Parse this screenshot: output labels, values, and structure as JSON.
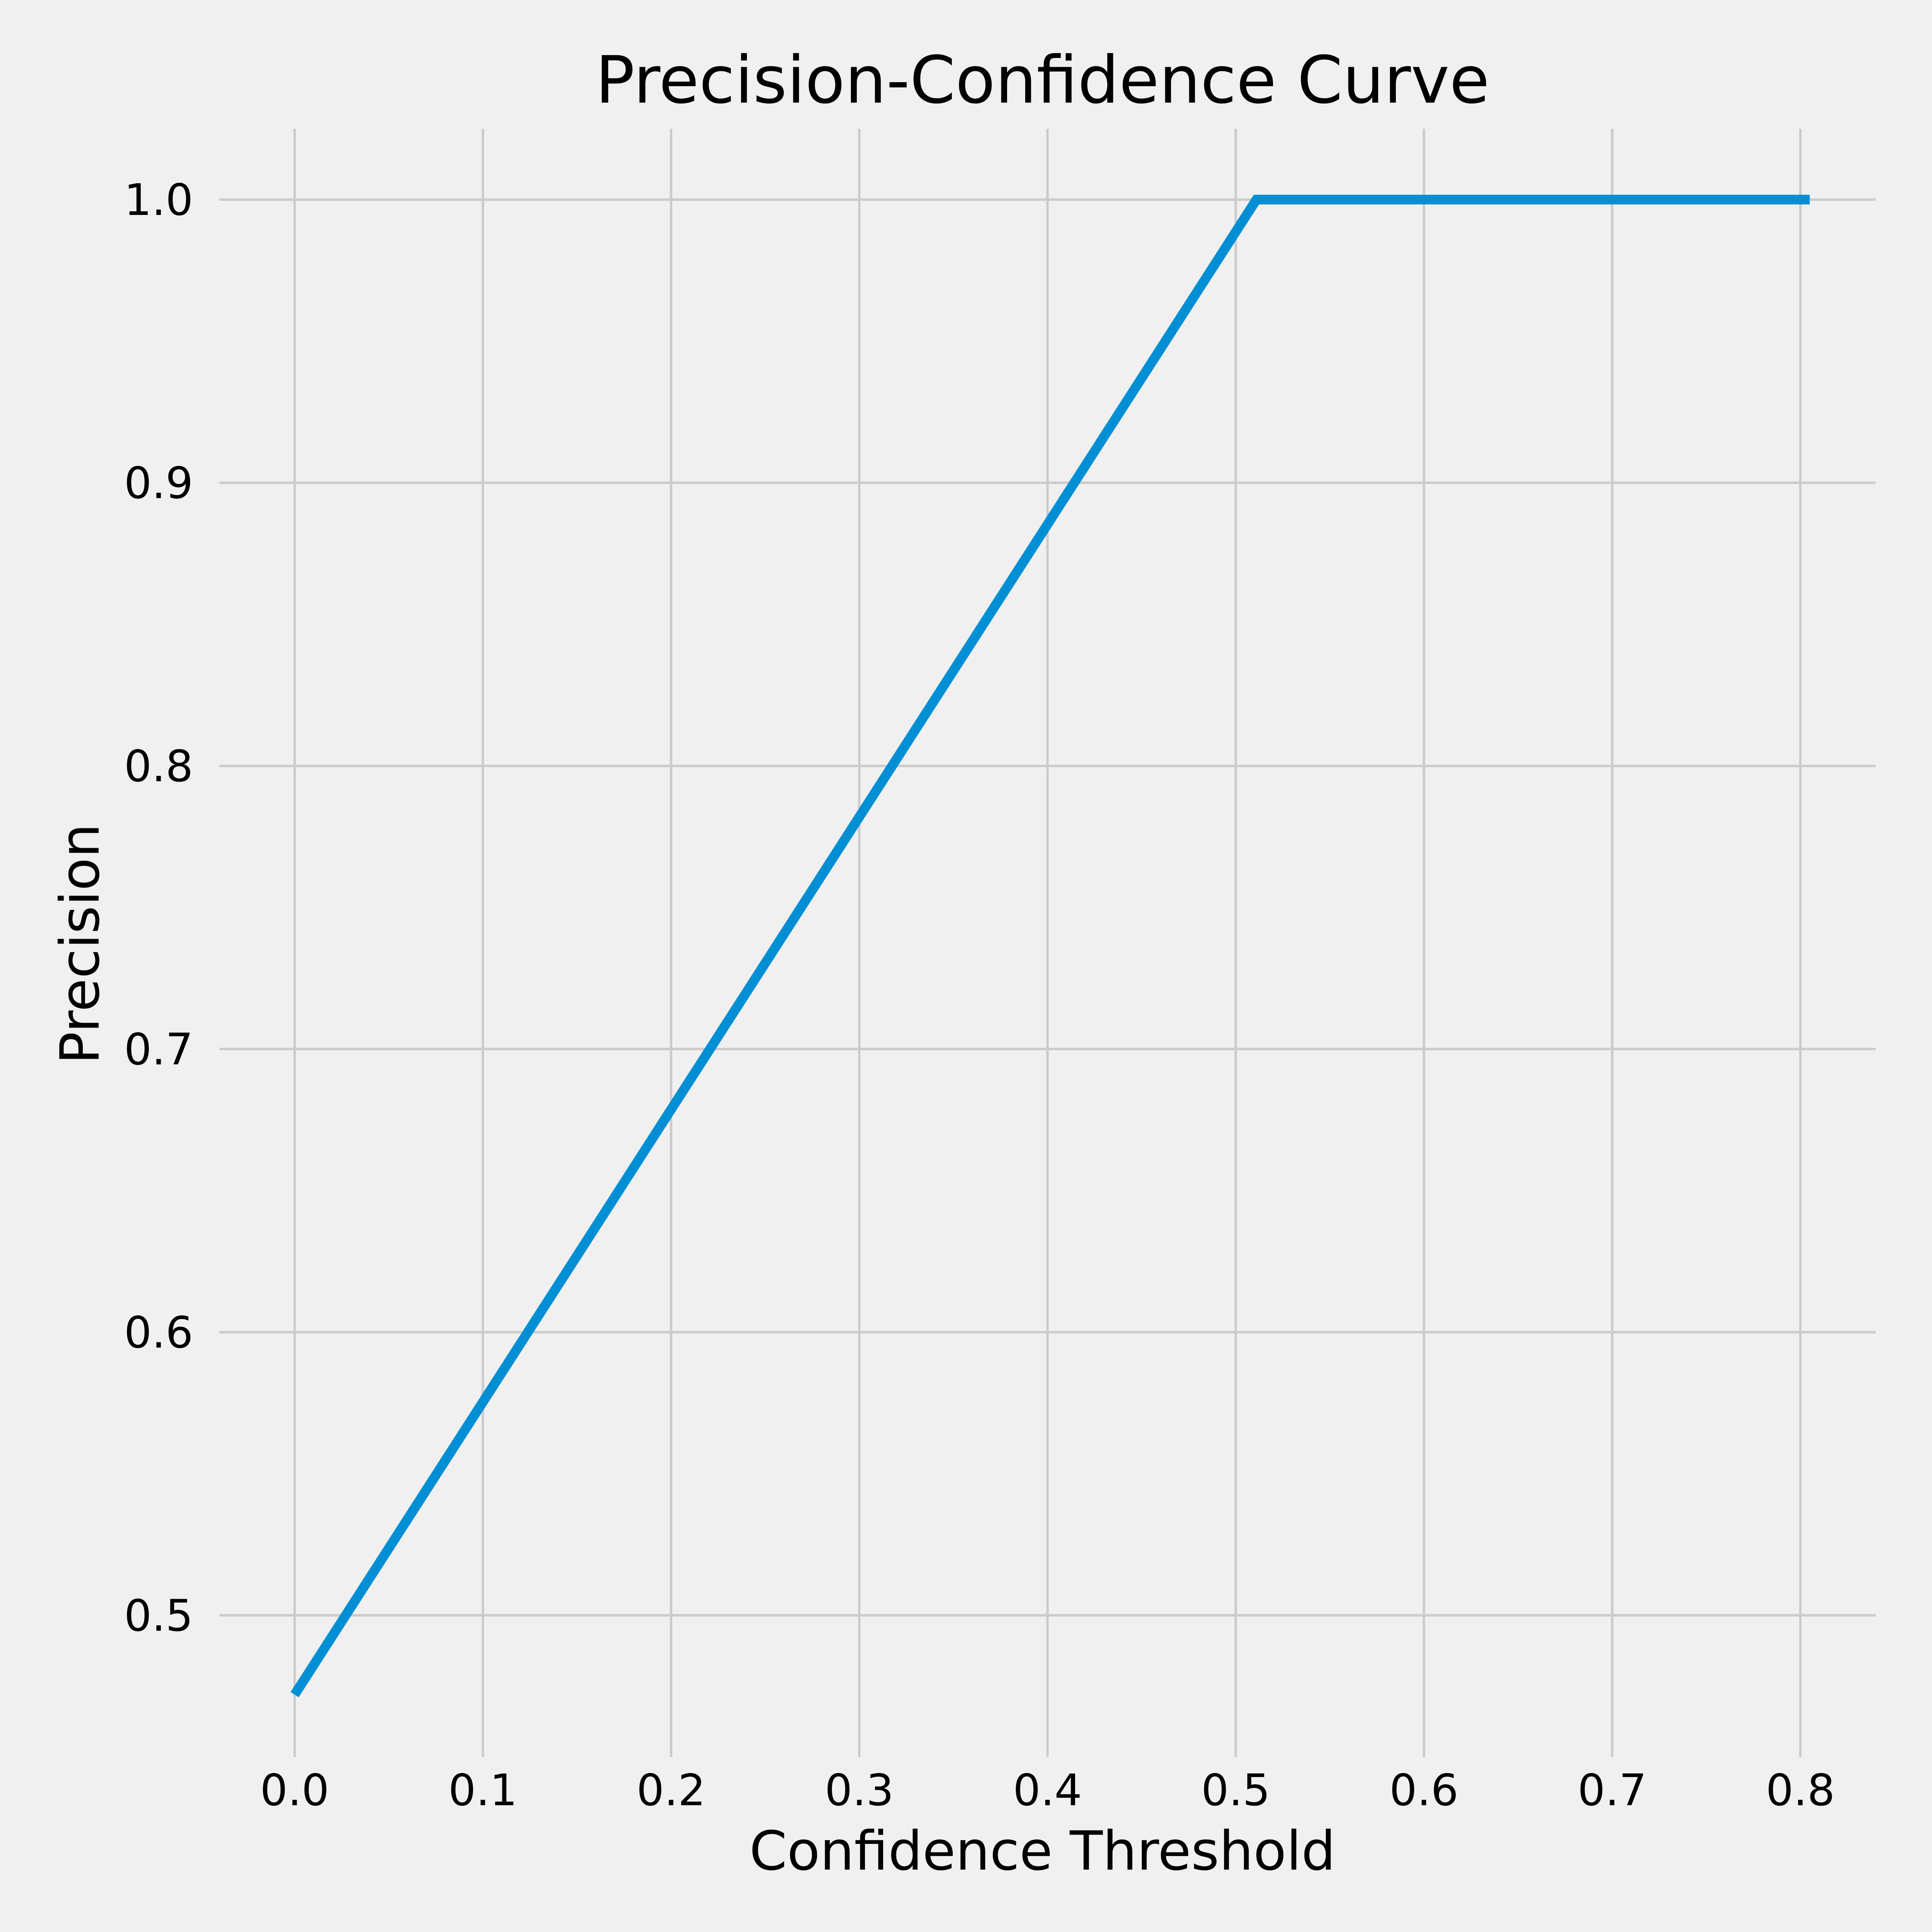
{
  "chart_data": {
    "type": "line",
    "title": "Precision-Confidence Curve",
    "xlabel": "Confidence Threshold",
    "ylabel": "Precision",
    "xlim": [
      -0.04,
      0.84
    ],
    "ylim": [
      0.45,
      1.025
    ],
    "xticks": [
      "0.0",
      "0.1",
      "0.2",
      "0.3",
      "0.4",
      "0.5",
      "0.6",
      "0.7",
      "0.8"
    ],
    "yticks": [
      "0.5",
      "0.6",
      "0.7",
      "0.8",
      "0.9",
      "1.0"
    ],
    "grid": true,
    "series": [
      {
        "color": "#008fd5",
        "x": [
          0.0,
          0.511,
          0.805
        ],
        "y": [
          0.472,
          1.0,
          1.0
        ]
      }
    ]
  }
}
